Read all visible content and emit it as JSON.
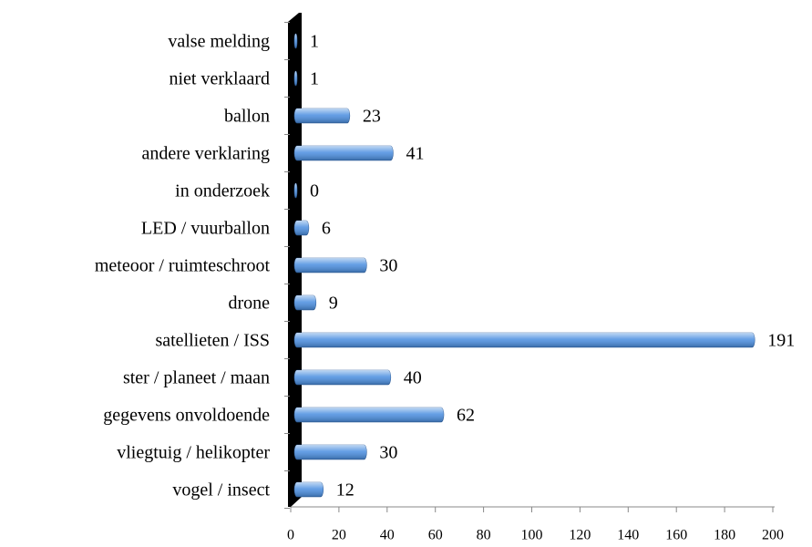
{
  "chart_data": {
    "type": "bar",
    "orientation": "horizontal",
    "categories": [
      "valse melding",
      "niet verklaard",
      "ballon",
      "andere verklaring",
      "in onderzoek",
      "LED / vuurballon",
      "meteoor / ruimteschroot",
      "drone",
      "satellieten / ISS",
      "ster / planeet / maan",
      "gegevens onvoldoende",
      "vliegtuig / helikopter",
      "vogel / insect"
    ],
    "values": [
      1,
      1,
      23,
      41,
      0,
      6,
      30,
      9,
      191,
      40,
      62,
      30,
      12
    ],
    "color": "#4a8ee0",
    "xlim": [
      0,
      200
    ],
    "xticks": [
      0,
      20,
      40,
      60,
      80,
      100,
      120,
      140,
      160,
      180,
      200
    ]
  }
}
